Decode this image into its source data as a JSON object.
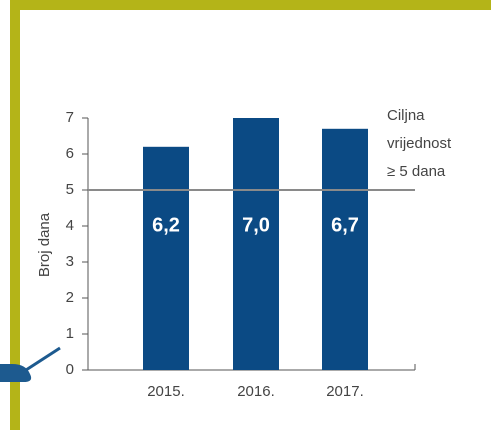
{
  "chart_data": {
    "type": "bar",
    "y_label": "Broj dana",
    "categories": [
      "2015.",
      "2016.",
      "2017."
    ],
    "values": [
      6.2,
      7.0,
      6.7
    ],
    "value_labels": [
      "6,2",
      "7,0",
      "6,7"
    ],
    "color": "#0b4a84",
    "ylim": [
      0,
      7
    ],
    "yticks": [
      0,
      1,
      2,
      3,
      4,
      5,
      6,
      7
    ],
    "target": 5,
    "target_color": "#8a8a8a",
    "annotation": [
      "Ciljna",
      "vrijednost",
      "≥ 5 dana"
    ]
  }
}
